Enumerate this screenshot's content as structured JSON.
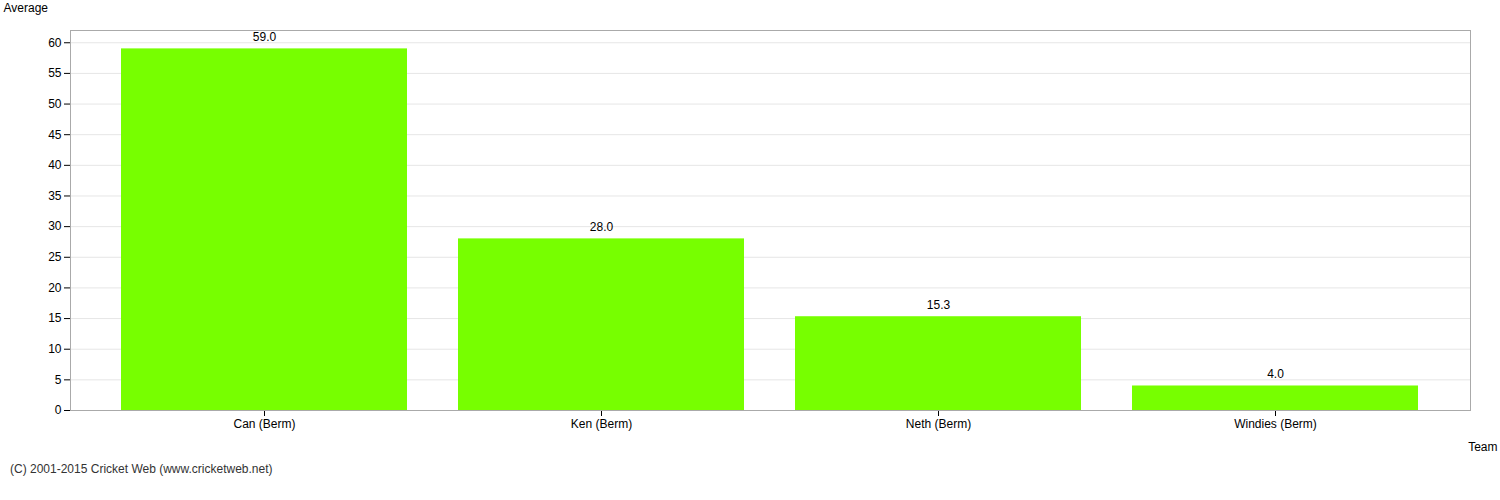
{
  "chart_data": {
    "type": "bar",
    "xlabel": "Team",
    "ylabel": "Average",
    "caption": "(C) 2001-2015 Cricket Web (www.cricketweb.net)",
    "categories": [
      "Can (Berm)",
      "Ken (Berm)",
      "Neth (Berm)",
      "Windies (Berm)"
    ],
    "values": [
      59.0,
      28.0,
      15.3,
      4.0
    ],
    "value_labels": [
      "59.0",
      "28.0",
      "15.3",
      "4.0"
    ],
    "data_labels": true,
    "color": "#77ff00",
    "ylim": [
      0,
      62
    ],
    "yticks": [
      0,
      5,
      10,
      15,
      20,
      25,
      30,
      35,
      40,
      45,
      50,
      55,
      60
    ],
    "grid": true
  }
}
